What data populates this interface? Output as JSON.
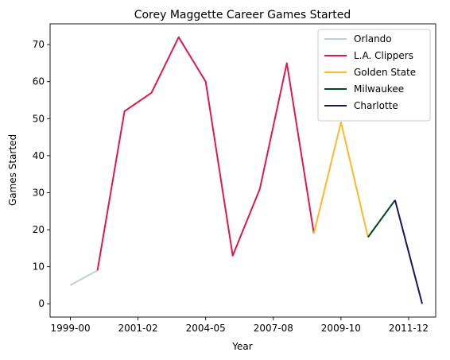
{
  "chart_data": {
    "type": "line",
    "title": "Corey Maggette Career Games Started",
    "xlabel": "Year",
    "ylabel": "Games Started",
    "x_ticks": [
      "1999-00",
      "2001-02",
      "2004-05",
      "2007-08",
      "2009-10",
      "2011-12"
    ],
    "x_tick_positions": [
      0,
      2.5,
      5,
      7.5,
      10,
      12.5
    ],
    "y_ticks": [
      0,
      10,
      20,
      30,
      40,
      50,
      60,
      70
    ],
    "xlim": [
      -0.75,
      13.5
    ],
    "ylim": [
      -3.6,
      75.6
    ],
    "grid": false,
    "legend": "top-right",
    "series": [
      {
        "name": "Orlando",
        "color": "#c4ced4",
        "x": [
          0,
          1
        ],
        "y": [
          5,
          9
        ]
      },
      {
        "name": "L.A. Clippers",
        "color": "#e0194d",
        "x": [
          1,
          2,
          3,
          4,
          5,
          6,
          7,
          8,
          9
        ],
        "y": [
          9,
          52,
          57,
          72,
          60,
          13,
          31,
          65,
          19
        ]
      },
      {
        "name": "Golden State",
        "color": "#fdb927",
        "x": [
          9,
          10,
          11
        ],
        "y": [
          19,
          49,
          18
        ]
      },
      {
        "name": "Milwaukee",
        "color": "#00471b",
        "x": [
          11,
          12
        ],
        "y": [
          18,
          28
        ]
      },
      {
        "name": "Charlotte",
        "color": "#1d1160",
        "x": [
          12,
          13
        ],
        "y": [
          28,
          0
        ]
      }
    ]
  }
}
